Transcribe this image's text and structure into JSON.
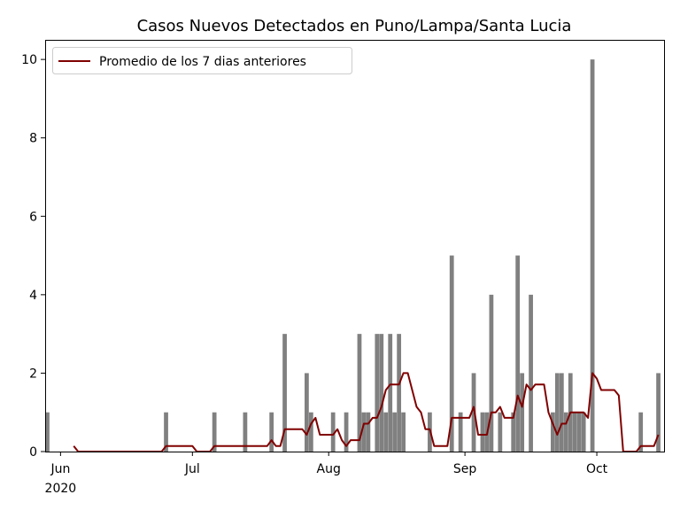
{
  "chart_data": {
    "type": "bar",
    "title": "Casos Nuevos Detectados en Puno/Lampa/Santa Lucia",
    "xlabel": "",
    "ylabel": "",
    "x_range": [
      "2020-05-29",
      "2020-10-16"
    ],
    "ylim": [
      0,
      10.5
    ],
    "yticks": [
      0,
      2,
      4,
      6,
      8,
      10
    ],
    "xticks": [
      {
        "date": "2020-06-01",
        "label": "Jun",
        "sublabel": "2020"
      },
      {
        "date": "2020-07-01",
        "label": "Jul",
        "sublabel": ""
      },
      {
        "date": "2020-08-01",
        "label": "Aug",
        "sublabel": ""
      },
      {
        "date": "2020-09-01",
        "label": "Sep",
        "sublabel": ""
      },
      {
        "date": "2020-10-01",
        "label": "Oct",
        "sublabel": ""
      }
    ],
    "grid": false,
    "legend_position": "top-left",
    "series": [
      {
        "name": "",
        "kind": "bar",
        "color": "#808080",
        "x": [
          "2020-05-29",
          "2020-06-25",
          "2020-07-06",
          "2020-07-13",
          "2020-07-19",
          "2020-07-22",
          "2020-07-27",
          "2020-07-28",
          "2020-08-02",
          "2020-08-05",
          "2020-08-08",
          "2020-08-09",
          "2020-08-10",
          "2020-08-12",
          "2020-08-13",
          "2020-08-14",
          "2020-08-15",
          "2020-08-16",
          "2020-08-17",
          "2020-08-18",
          "2020-08-24",
          "2020-08-29",
          "2020-08-31",
          "2020-09-03",
          "2020-09-05",
          "2020-09-06",
          "2020-09-07",
          "2020-09-09",
          "2020-09-12",
          "2020-09-13",
          "2020-09-14",
          "2020-09-16",
          "2020-09-21",
          "2020-09-22",
          "2020-09-23",
          "2020-09-24",
          "2020-09-25",
          "2020-09-26",
          "2020-09-27",
          "2020-09-28",
          "2020-09-30",
          "2020-10-11",
          "2020-10-15"
        ],
        "values": [
          1,
          1,
          1,
          1,
          1,
          3,
          2,
          1,
          1,
          1,
          3,
          1,
          1,
          3,
          3,
          1,
          3,
          1,
          3,
          1,
          1,
          5,
          1,
          2,
          1,
          1,
          4,
          1,
          1,
          5,
          2,
          4,
          1,
          2,
          2,
          1,
          2,
          1,
          1,
          1,
          10,
          1,
          2
        ]
      },
      {
        "name": "Promedio de los 7 dias anteriores",
        "kind": "line",
        "color": "#800000",
        "points": [
          [
            "2020-06-04",
            0.14
          ],
          [
            "2020-06-05",
            0
          ],
          [
            "2020-06-24",
            0
          ],
          [
            "2020-06-25",
            0.14
          ],
          [
            "2020-07-01",
            0.14
          ],
          [
            "2020-07-02",
            0
          ],
          [
            "2020-07-05",
            0
          ],
          [
            "2020-07-06",
            0.14
          ],
          [
            "2020-07-18",
            0.14
          ],
          [
            "2020-07-19",
            0.29
          ],
          [
            "2020-07-20",
            0.14
          ],
          [
            "2020-07-21",
            0.14
          ],
          [
            "2020-07-22",
            0.57
          ],
          [
            "2020-07-26",
            0.57
          ],
          [
            "2020-07-27",
            0.43
          ],
          [
            "2020-07-28",
            0.71
          ],
          [
            "2020-07-29",
            0.86
          ],
          [
            "2020-07-30",
            0.43
          ],
          [
            "2020-08-02",
            0.43
          ],
          [
            "2020-08-03",
            0.57
          ],
          [
            "2020-08-04",
            0.29
          ],
          [
            "2020-08-05",
            0.14
          ],
          [
            "2020-08-06",
            0.29
          ],
          [
            "2020-08-08",
            0.29
          ],
          [
            "2020-08-09",
            0.71
          ],
          [
            "2020-08-10",
            0.71
          ],
          [
            "2020-08-11",
            0.86
          ],
          [
            "2020-08-12",
            0.86
          ],
          [
            "2020-08-13",
            1.14
          ],
          [
            "2020-08-14",
            1.57
          ],
          [
            "2020-08-15",
            1.71
          ],
          [
            "2020-08-17",
            1.71
          ],
          [
            "2020-08-18",
            2.0
          ],
          [
            "2020-08-19",
            2.0
          ],
          [
            "2020-08-20",
            1.57
          ],
          [
            "2020-08-21",
            1.14
          ],
          [
            "2020-08-22",
            1.0
          ],
          [
            "2020-08-23",
            0.57
          ],
          [
            "2020-08-24",
            0.57
          ],
          [
            "2020-08-25",
            0.14
          ],
          [
            "2020-08-28",
            0.14
          ],
          [
            "2020-08-29",
            0.86
          ],
          [
            "2020-09-02",
            0.86
          ],
          [
            "2020-09-03",
            1.14
          ],
          [
            "2020-09-04",
            0.43
          ],
          [
            "2020-09-06",
            0.43
          ],
          [
            "2020-09-07",
            1.0
          ],
          [
            "2020-09-08",
            1.0
          ],
          [
            "2020-09-09",
            1.14
          ],
          [
            "2020-09-10",
            0.86
          ],
          [
            "2020-09-12",
            0.86
          ],
          [
            "2020-09-13",
            1.43
          ],
          [
            "2020-09-14",
            1.14
          ],
          [
            "2020-09-15",
            1.71
          ],
          [
            "2020-09-16",
            1.57
          ],
          [
            "2020-09-17",
            1.71
          ],
          [
            "2020-09-19",
            1.71
          ],
          [
            "2020-09-20",
            1.0
          ],
          [
            "2020-09-21",
            0.71
          ],
          [
            "2020-09-22",
            0.43
          ],
          [
            "2020-09-23",
            0.71
          ],
          [
            "2020-09-24",
            0.71
          ],
          [
            "2020-09-25",
            1.0
          ],
          [
            "2020-09-28",
            1.0
          ],
          [
            "2020-09-29",
            0.86
          ],
          [
            "2020-09-30",
            2.0
          ],
          [
            "2020-10-01",
            1.86
          ],
          [
            "2020-10-02",
            1.57
          ],
          [
            "2020-10-05",
            1.57
          ],
          [
            "2020-10-06",
            1.43
          ],
          [
            "2020-10-07",
            0
          ],
          [
            "2020-10-10",
            0
          ],
          [
            "2020-10-11",
            0.14
          ],
          [
            "2020-10-14",
            0.14
          ],
          [
            "2020-10-15",
            0.43
          ]
        ]
      }
    ]
  }
}
